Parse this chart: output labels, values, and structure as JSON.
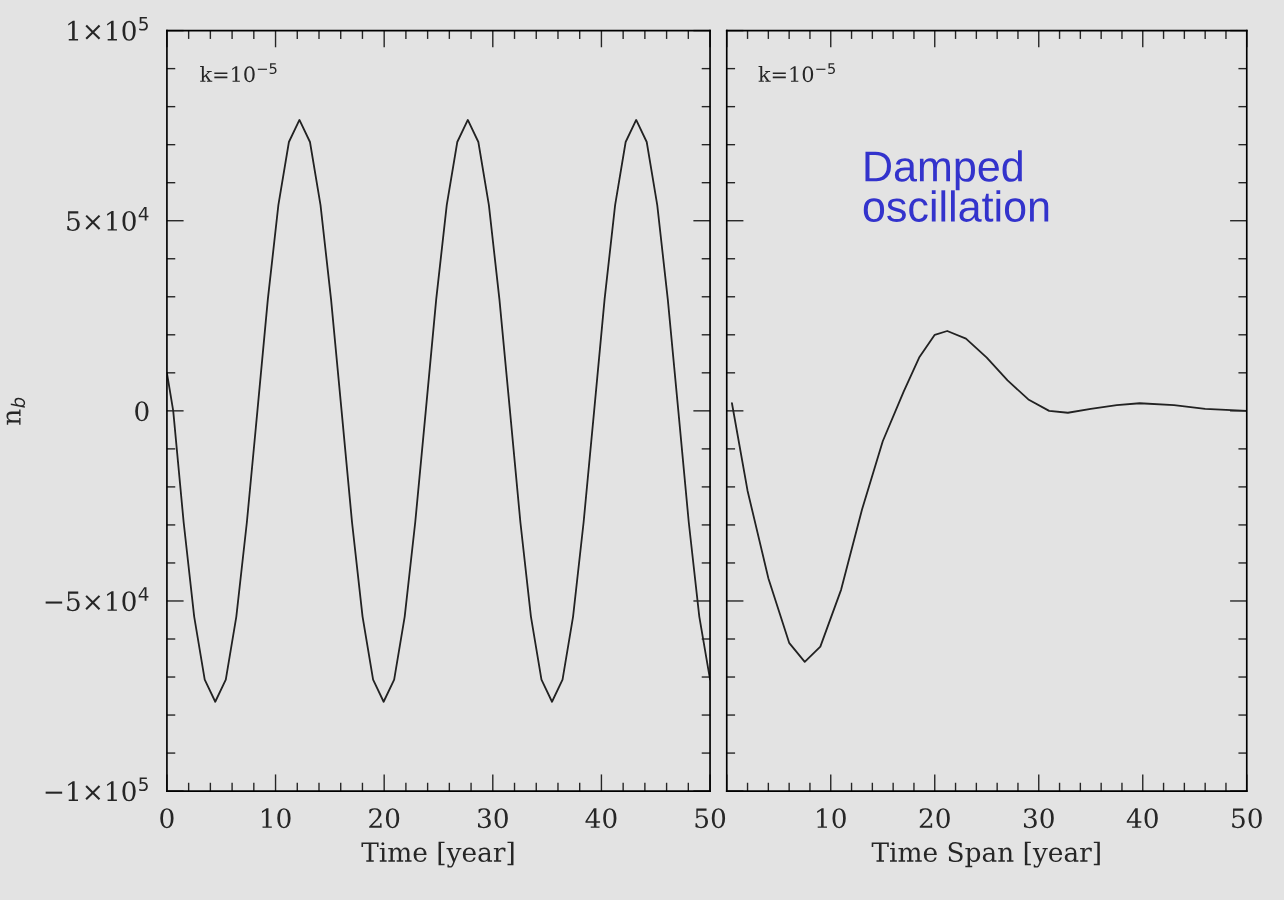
{
  "chart_data": [
    {
      "type": "line",
      "xlabel": "Time [year]",
      "ylabel": "n$_{b}$",
      "annotations": [
        "k=10$^{−5}$"
      ],
      "xlim": [
        0,
        50
      ],
      "xticks": [
        0,
        10,
        20,
        30,
        40,
        50
      ],
      "ylim": [
        -100000,
        100000
      ],
      "yticks": [
        {
          "value": -100000,
          "label": "−1×10$^{5}$"
        },
        {
          "value": -50000,
          "label": "−5×10$^{4}$"
        },
        0,
        {
          "value": 50000,
          "label": "5×10$^{4}$"
        },
        {
          "value": 100000,
          "label": "1×10$^{5}$"
        }
      ],
      "series": [
        {
          "color": "#222222",
          "x": [
            0,
            0.58,
            1.54,
            2.51,
            3.48,
            4.45,
            5.42,
            6.39,
            7.36,
            8.33,
            9.29,
            10.26,
            11.23,
            12.2,
            13.17,
            14.14,
            15.11,
            16.08,
            17.04,
            18.01,
            18.98,
            19.95,
            20.92,
            21.89,
            22.86,
            23.83,
            24.79,
            25.76,
            26.73,
            27.7,
            28.67,
            29.64,
            30.61,
            31.58,
            32.54,
            33.51,
            34.48,
            35.45,
            36.42,
            37.39,
            38.36,
            39.33,
            40.29,
            41.26,
            42.23,
            43.2,
            44.17,
            45.14,
            46.11,
            47.08,
            48.04,
            49.01,
            50
          ],
          "values": [
            10000,
            0,
            -29300,
            -54100,
            -70700,
            -76500,
            -70700,
            -54100,
            -29300,
            0,
            29300,
            54100,
            70700,
            76500,
            70700,
            54100,
            29300,
            0,
            -29300,
            -54100,
            -70700,
            -76500,
            -70700,
            -54100,
            -29300,
            0,
            29300,
            54100,
            70700,
            76500,
            70700,
            54100,
            29300,
            0,
            -29300,
            -54100,
            -70700,
            -76500,
            -70700,
            -54100,
            -29300,
            0,
            29300,
            54100,
            70700,
            76500,
            70700,
            54100,
            29300,
            0,
            -29300,
            -54100,
            -70700
          ]
        }
      ]
    },
    {
      "type": "line",
      "xlabel": "Time Span [year]",
      "annotations": [
        "k=10$^{−5}$",
        "Damped\noscillation"
      ],
      "xlim": [
        0,
        50
      ],
      "xticks": [
        {
          "value": 0,
          "label": null
        },
        10,
        20,
        30,
        40,
        50
      ],
      "ylim": [
        -100000,
        100000
      ],
      "yticks": [
        -100000,
        -50000,
        0,
        50000,
        100000
      ],
      "tick_labels": "x",
      "series": [
        {
          "color": "#222222",
          "x": [
            0.5,
            2,
            4,
            6,
            7.5,
            9,
            11,
            13,
            15,
            17,
            18.5,
            20,
            21.2,
            23,
            25,
            27,
            29,
            31,
            32.8,
            35,
            37.5,
            39.7,
            43,
            46,
            50
          ],
          "values": [
            2000,
            -21000,
            -44000,
            -61000,
            -66000,
            -62000,
            -47000,
            -26000,
            -8000,
            5000,
            14000,
            20000,
            21000,
            19000,
            14000,
            8000,
            3000,
            0,
            -500,
            500,
            1500,
            2000,
            1500,
            500,
            0
          ]
        }
      ]
    }
  ]
}
